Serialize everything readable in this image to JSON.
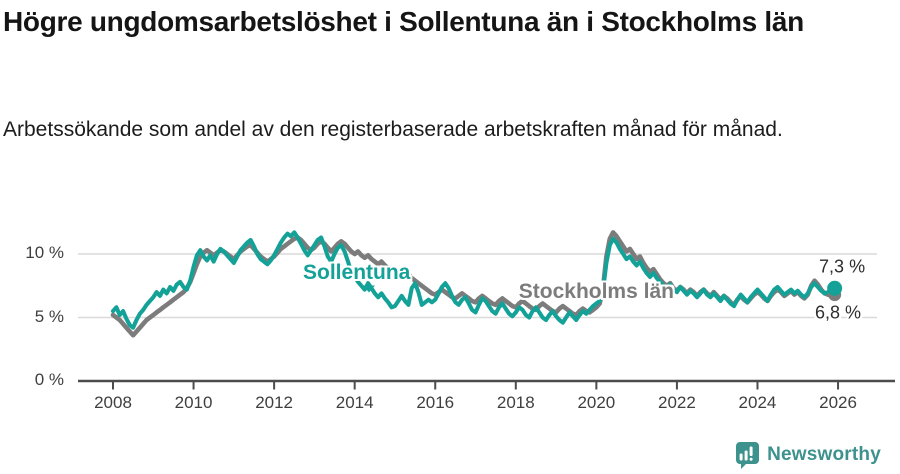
{
  "header": {
    "title": "Högre ungdomsarbetslöshet i Sollentuna än i Stockholms län",
    "subtitle": "Arbetssökande som andel av den registerbaserade arbetskraften månad för månad."
  },
  "colors": {
    "sollentuna": "#14a298",
    "stockholm": "#7c7c7c",
    "grid": "#dadada",
    "axis": "#4c4c4c",
    "heading_text": "#151515",
    "axis_text": "#3f3f3f",
    "end_label_text": "#2e2e2e",
    "brand": "#3d928e"
  },
  "chart_data": {
    "type": "line",
    "title": "Högre ungdomsarbetslöshet i Sollentuna än i Stockholms län",
    "subtitle": "Arbetssökande som andel av den registerbaserade arbetskraften månad för månad.",
    "ylabel": "",
    "xlabel": "",
    "grid": "horizontal",
    "legend_position": "inline-annotations",
    "xlim": [
      2007.1,
      2027.0
    ],
    "ylim": [
      0,
      12.5
    ],
    "x_ticks": [
      2008,
      2010,
      2012,
      2014,
      2016,
      2018,
      2020,
      2022,
      2024,
      2026
    ],
    "y_ticks": [
      {
        "value": 0,
        "label": "0 %"
      },
      {
        "value": 5,
        "label": "5 %"
      },
      {
        "value": 10,
        "label": "10 %"
      }
    ],
    "x_unit": "year (monthly resolution)",
    "y_unit": "percent",
    "series": [
      {
        "name": "Sollentuna",
        "color": "#14a298",
        "x_start": 2008.0,
        "x_step": 0.08333,
        "end_value": 7.3,
        "end_label": "7,3 %",
        "values": [
          5.5,
          5.8,
          5.2,
          5.5,
          4.9,
          4.4,
          4.2,
          4.8,
          5.3,
          5.6,
          6.0,
          6.3,
          6.6,
          7.0,
          6.7,
          7.2,
          6.9,
          7.4,
          7.1,
          7.6,
          7.8,
          7.4,
          7.2,
          7.9,
          9.0,
          9.9,
          10.3,
          9.8,
          9.5,
          9.9,
          9.4,
          10.0,
          10.4,
          10.2,
          9.9,
          9.6,
          9.3,
          9.8,
          10.3,
          10.6,
          10.9,
          11.1,
          10.6,
          10.0,
          9.6,
          9.4,
          9.2,
          9.5,
          9.9,
          10.4,
          10.9,
          11.3,
          11.6,
          11.4,
          11.7,
          11.3,
          10.8,
          10.3,
          9.9,
          10.3,
          10.7,
          11.1,
          11.3,
          10.6,
          9.8,
          9.4,
          10.0,
          10.5,
          10.7,
          10.2,
          9.4,
          8.6,
          8.2,
          7.8,
          7.5,
          7.2,
          7.7,
          7.3,
          6.9,
          6.6,
          6.9,
          6.5,
          6.2,
          5.8,
          5.9,
          6.3,
          6.7,
          6.3,
          6.0,
          7.3,
          7.7,
          7.0,
          6.0,
          6.2,
          6.4,
          6.2,
          6.4,
          6.9,
          7.4,
          7.7,
          7.3,
          6.7,
          6.2,
          6.0,
          6.4,
          6.6,
          6.1,
          5.6,
          5.4,
          6.0,
          6.5,
          6.3,
          5.9,
          5.5,
          5.3,
          5.8,
          6.1,
          5.7,
          5.3,
          5.1,
          5.4,
          5.8,
          5.6,
          5.2,
          5.0,
          5.5,
          5.8,
          5.4,
          5.0,
          4.8,
          5.2,
          5.5,
          5.1,
          4.8,
          4.6,
          5.0,
          5.4,
          5.1,
          4.8,
          5.2,
          5.5,
          5.3,
          5.6,
          5.9,
          6.1,
          6.3,
          7.2,
          9.3,
          10.7,
          11.2,
          10.9,
          10.4,
          10.0,
          9.6,
          9.8,
          9.4,
          9.1,
          9.4,
          8.9,
          8.5,
          8.2,
          8.5,
          8.1,
          7.8,
          7.5,
          7.3,
          7.6,
          7.2,
          7.0,
          7.4,
          7.1,
          6.8,
          7.1,
          6.9,
          6.6,
          6.9,
          7.2,
          6.8,
          6.6,
          6.9,
          6.6,
          6.3,
          6.7,
          6.4,
          6.1,
          5.9,
          6.4,
          6.8,
          6.5,
          6.2,
          6.6,
          6.9,
          7.2,
          6.9,
          6.6,
          6.3,
          6.8,
          7.2,
          7.4,
          7.1,
          6.8,
          7.0,
          7.2,
          6.9,
          7.1,
          6.8,
          6.6,
          6.9,
          7.4,
          7.7,
          7.4,
          7.1,
          6.9,
          7.0,
          7.2,
          7.3
        ]
      },
      {
        "name": "Stockholms län",
        "color": "#7c7c7c",
        "x_start": 2008.0,
        "x_step": 0.08333,
        "end_value": 6.8,
        "end_label": "6,8 %",
        "values": [
          5.2,
          5.0,
          4.8,
          4.5,
          4.2,
          3.9,
          3.6,
          3.9,
          4.2,
          4.5,
          4.8,
          5.0,
          5.2,
          5.4,
          5.6,
          5.8,
          6.0,
          6.2,
          6.4,
          6.6,
          6.8,
          7.0,
          7.3,
          7.8,
          8.5,
          9.2,
          9.8,
          10.1,
          10.3,
          10.1,
          9.9,
          10.1,
          10.3,
          10.2,
          10.0,
          9.8,
          9.6,
          9.9,
          10.2,
          10.4,
          10.6,
          10.7,
          10.4,
          10.1,
          9.8,
          9.6,
          9.4,
          9.6,
          9.8,
          10.1,
          10.4,
          10.6,
          10.8,
          11.0,
          11.2,
          11.3,
          11.1,
          10.8,
          10.5,
          10.3,
          10.5,
          10.8,
          11.0,
          10.8,
          10.5,
          10.2,
          10.5,
          10.8,
          11.0,
          10.8,
          10.5,
          10.2,
          10.0,
          10.2,
          9.9,
          9.7,
          9.9,
          9.6,
          9.4,
          9.2,
          9.4,
          9.1,
          8.9,
          8.7,
          8.5,
          8.7,
          8.4,
          8.2,
          8.4,
          8.1,
          7.9,
          7.7,
          7.5,
          7.3,
          7.1,
          6.9,
          6.8,
          7.0,
          7.2,
          7.0,
          6.8,
          6.6,
          6.5,
          6.7,
          6.9,
          6.7,
          6.5,
          6.3,
          6.2,
          6.5,
          6.7,
          6.5,
          6.3,
          6.1,
          6.0,
          6.3,
          6.5,
          6.3,
          6.1,
          5.9,
          5.8,
          6.1,
          6.3,
          6.1,
          5.9,
          5.7,
          5.6,
          5.9,
          6.1,
          5.9,
          5.7,
          5.5,
          5.4,
          5.7,
          5.9,
          5.7,
          5.5,
          5.3,
          5.2,
          5.5,
          5.7,
          5.5,
          5.4,
          5.6,
          5.8,
          6.1,
          7.4,
          9.8,
          11.2,
          11.7,
          11.4,
          11.0,
          10.6,
          10.2,
          10.4,
          10.0,
          9.6,
          9.8,
          9.3,
          8.9,
          8.6,
          8.8,
          8.4,
          8.0,
          7.7,
          7.5,
          7.7,
          7.3,
          7.1,
          7.4,
          7.2,
          6.9,
          7.2,
          7.0,
          6.7,
          7.0,
          7.2,
          6.9,
          6.7,
          7.0,
          6.7,
          6.4,
          6.7,
          6.5,
          6.2,
          6.0,
          6.4,
          6.7,
          6.4,
          6.2,
          6.5,
          6.8,
          7.0,
          6.8,
          6.5,
          6.3,
          6.7,
          7.0,
          7.2,
          7.0,
          6.7,
          6.9,
          7.1,
          6.8,
          7.0,
          6.7,
          6.5,
          6.8,
          7.5,
          7.9,
          7.6,
          7.2,
          6.9,
          6.8,
          6.7,
          6.8
        ]
      }
    ],
    "annotations": {
      "sollentuna": {
        "text": "Sollentuna",
        "x": 2014.05,
        "y": 8.5,
        "caret": {
          "x": 2014.35,
          "y": 7.25
        }
      },
      "stockholm": {
        "text": "Stockholms län",
        "x": 2020.0,
        "y": 7.0
      }
    },
    "end_labels": [
      {
        "text": "7,3 %",
        "x": 2026.1,
        "y": 8.95
      },
      {
        "text": "6,8 %",
        "x": 2026.0,
        "y": 5.35
      }
    ]
  },
  "footer": {
    "brand": "Newsworthy",
    "logo_icon": "speech-bubble-bar-chart-icon"
  }
}
